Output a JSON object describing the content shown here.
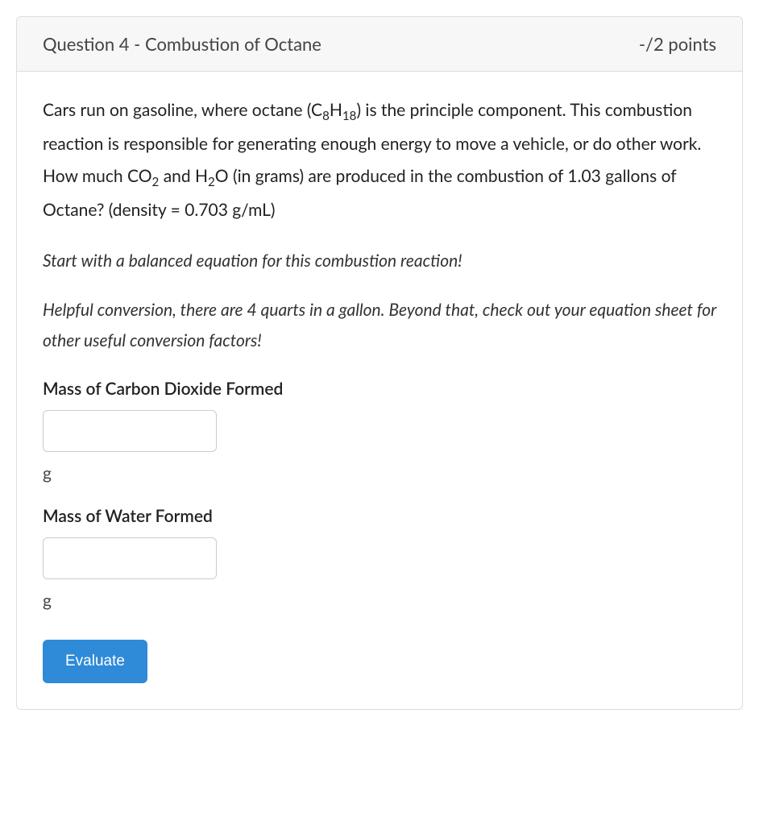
{
  "colors": {
    "card_border": "#dddddd",
    "header_bg": "#f7f7f7",
    "body_bg": "#ffffff",
    "text": "#333333",
    "button_bg": "#2f8ad8",
    "button_text": "#ffffff",
    "input_border": "#cccccc"
  },
  "header": {
    "title": "Question 4 - Combustion of Octane",
    "points": "-/2 points"
  },
  "body": {
    "prompt_html": "Cars run on gasoline, where octane (C<sub>8</sub>H<sub>18</sub>) is the principle component.  This combustion reaction is responsible for generating enough energy to move a vehicle, or do other work.  How much CO<sub>2</sub> and H<sub>2</sub>O (in grams) are produced in the combustion of  1.03 gallons of Octane? (density = 0.703 g/mL)",
    "hint1": "Start with a balanced equation for this combustion reaction!",
    "hint2": "Helpful conversion, there are 4 quarts in a gallon.  Beyond that, check out your equation sheet for other useful conversion factors!",
    "fields": [
      {
        "label": "Mass of Carbon Dioxide Formed",
        "value": "",
        "unit": "g"
      },
      {
        "label": "Mass of Water Formed",
        "value": "",
        "unit": "g"
      }
    ],
    "button": "Evaluate"
  }
}
